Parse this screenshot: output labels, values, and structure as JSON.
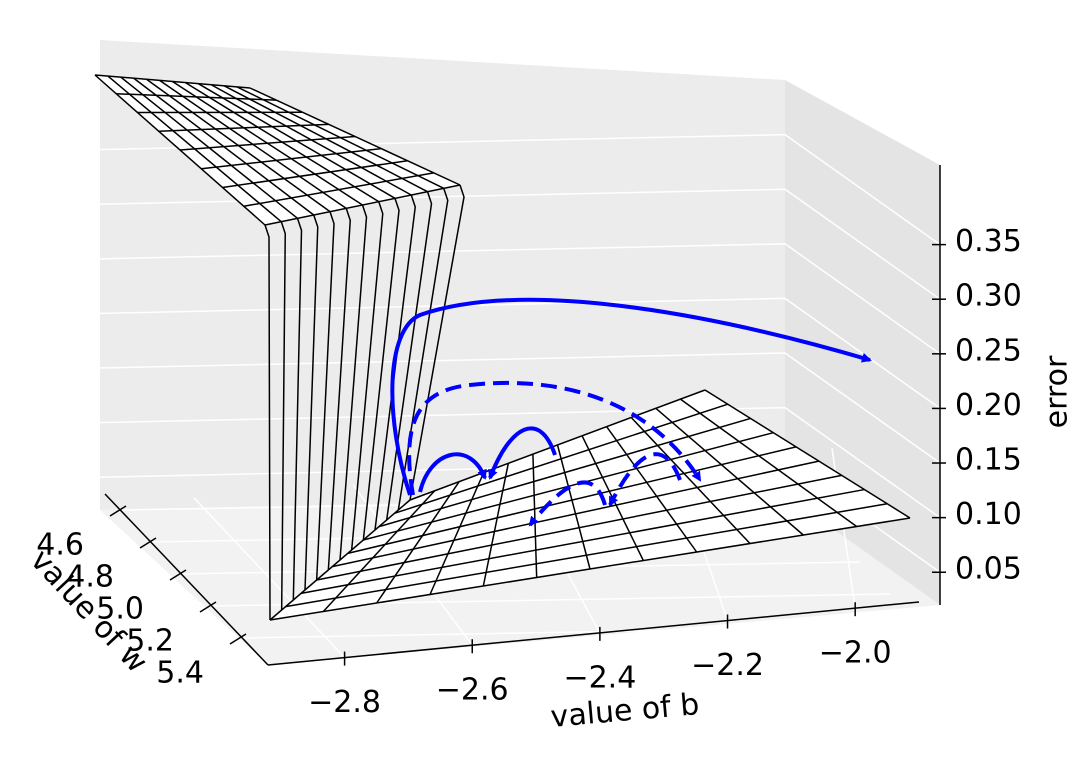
{
  "chart_data": {
    "type": "surface3d",
    "xlabel": "value of b",
    "ylabel": "value of w",
    "zlabel": "error",
    "xlim": [
      -2.92,
      -1.9
    ],
    "xticks": [
      {
        "value": -2.8,
        "label": "−2.8"
      },
      {
        "value": -2.6,
        "label": "−2.6"
      },
      {
        "value": -2.4,
        "label": "−2.4"
      },
      {
        "value": -2.2,
        "label": "−2.2"
      },
      {
        "value": -2.0,
        "label": "−2.0"
      }
    ],
    "ylim": [
      4.5,
      5.5
    ],
    "yticks": [
      4.6,
      4.8,
      {
        "value": 5.0,
        "label": "5.0"
      },
      5.2,
      5.4
    ],
    "zlim": [
      0.02,
      0.4
    ],
    "zticks": [
      0.05,
      {
        "value": 0.1,
        "label": "0.10"
      },
      0.15,
      {
        "value": 0.2,
        "label": "0.20"
      },
      0.25,
      {
        "value": 0.3,
        "label": "0.30"
      },
      0.35
    ],
    "grid": true,
    "surface_color": "#000000",
    "path_color": "#0000ff"
  }
}
